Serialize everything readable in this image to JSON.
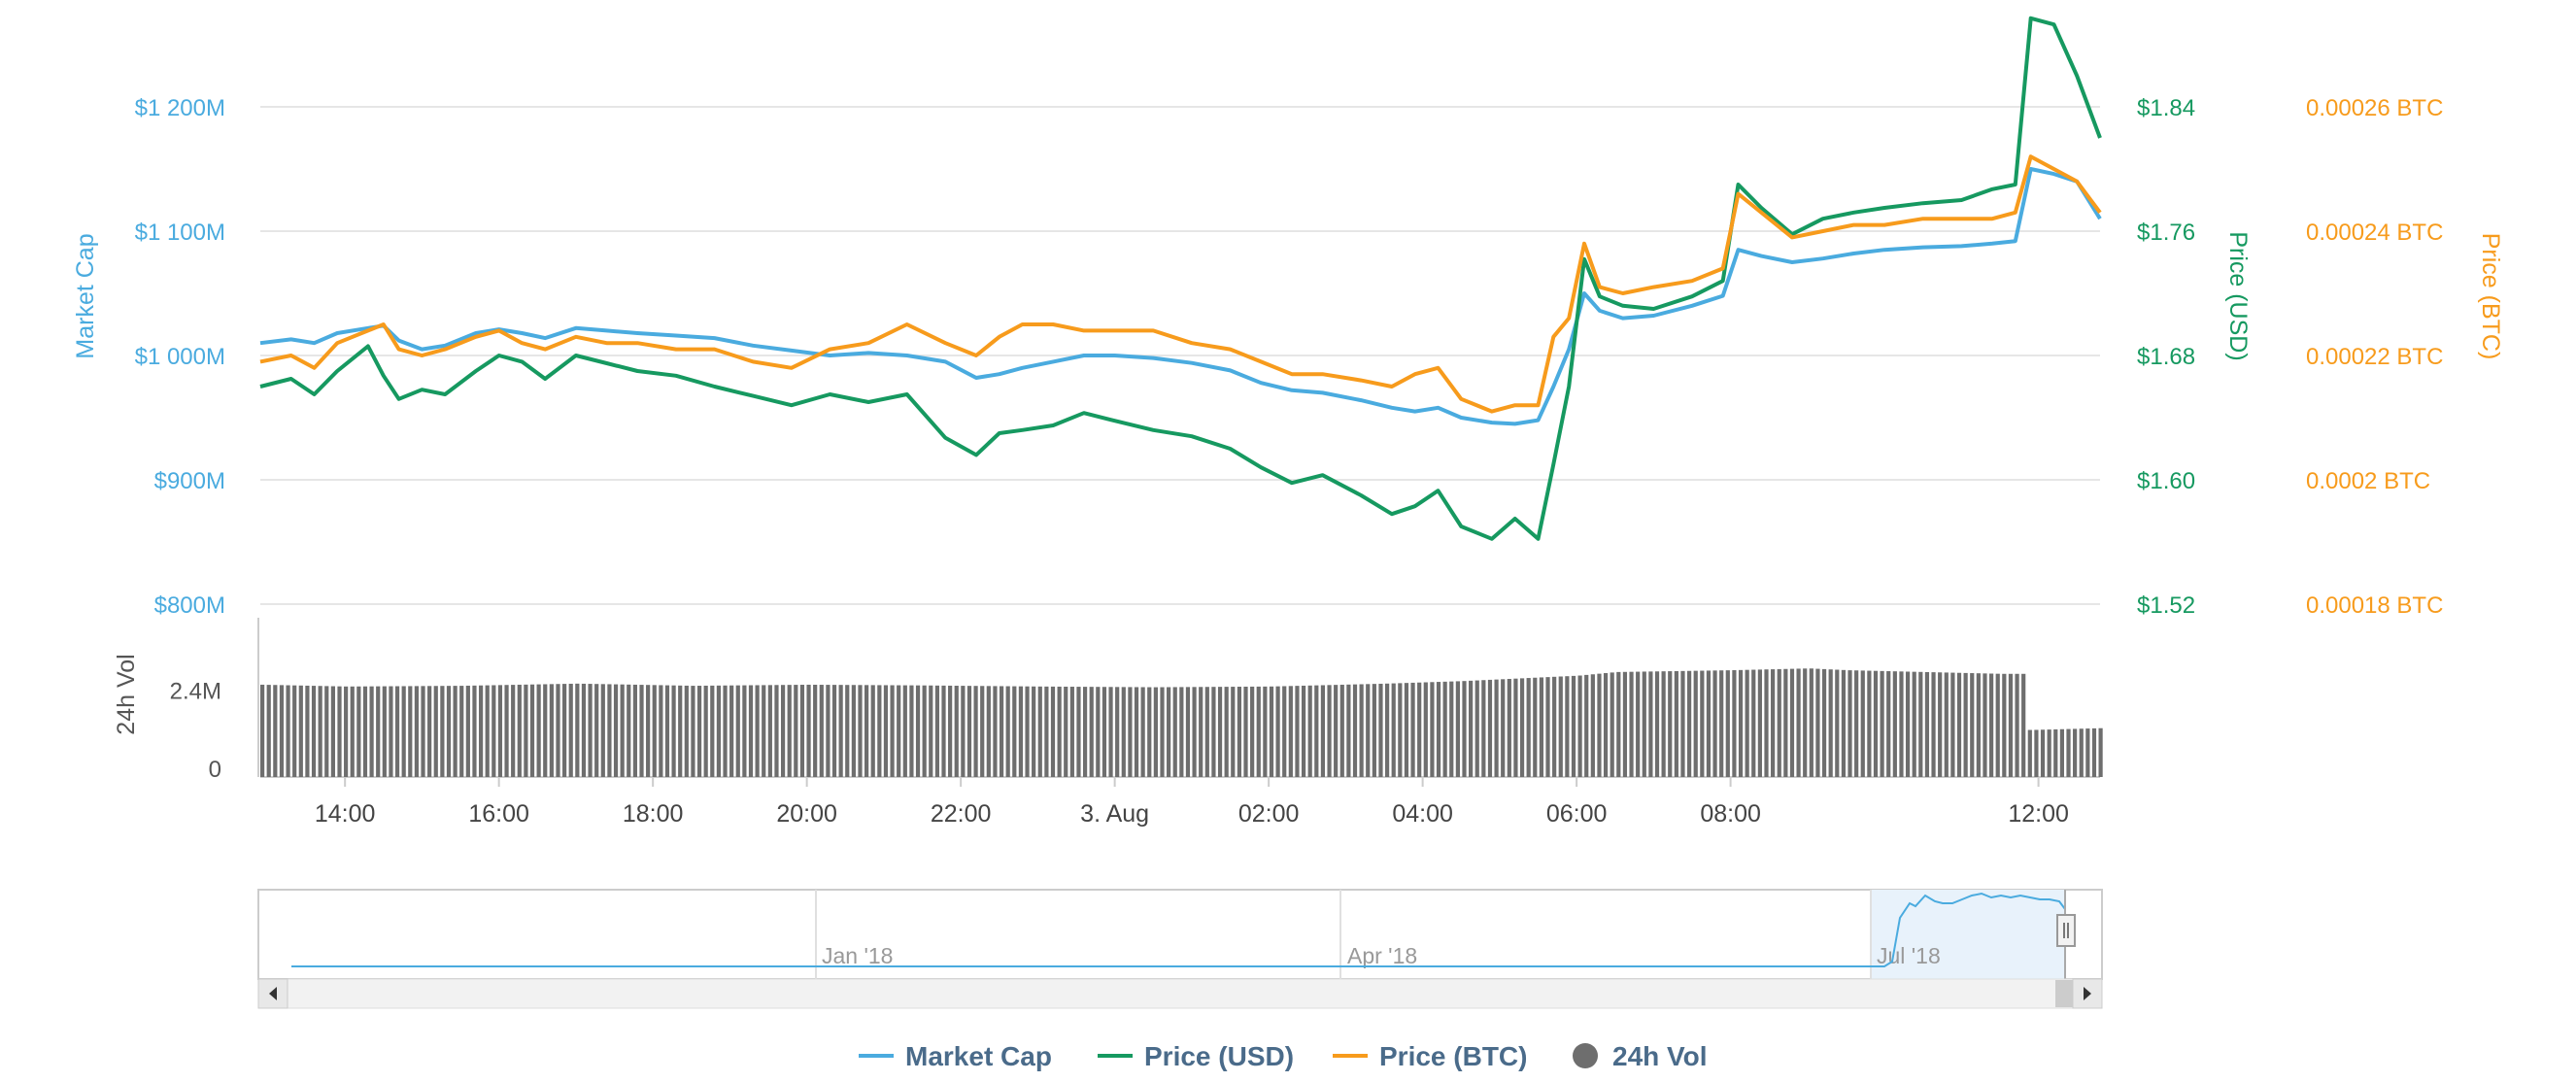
{
  "chart_data": {
    "type": "line",
    "x_axis": {
      "tick_labels": [
        "14:00",
        "16:00",
        "18:00",
        "20:00",
        "22:00",
        "3. Aug",
        "02:00",
        "04:00",
        "06:00",
        "08:00",
        "12:00"
      ],
      "tick_hours": [
        14,
        16,
        18,
        20,
        22,
        24,
        26,
        28,
        30,
        32,
        36
      ],
      "range_hours": [
        12.9,
        36.8
      ]
    },
    "axes": {
      "market_cap": {
        "title": "Market Cap",
        "ticks": [
          "$800M",
          "$900M",
          "$1 000M",
          "$1 100M",
          "$1 200M"
        ],
        "tick_values": [
          800,
          900,
          1000,
          1100,
          1200
        ],
        "range": [
          800,
          1200
        ],
        "color": "#4aabdf"
      },
      "price_usd": {
        "title": "Price (USD)",
        "ticks": [
          "$1.52",
          "$1.60",
          "$1.68",
          "$1.76",
          "$1.84"
        ],
        "tick_values": [
          1.52,
          1.6,
          1.68,
          1.76,
          1.84
        ],
        "range": [
          1.52,
          1.84
        ],
        "color": "#169960"
      },
      "price_btc": {
        "title": "Price (BTC)",
        "ticks": [
          "0.00018 BTC",
          "0.0002 BTC",
          "0.00022 BTC",
          "0.00024 BTC",
          "0.00026 BTC"
        ],
        "tick_values": [
          0.00018,
          0.0002,
          0.00022,
          0.00024,
          0.00026
        ],
        "range": [
          0.00018,
          0.00026
        ],
        "color": "#f79b1c"
      },
      "volume": {
        "title": "24h Vol",
        "ticks": [
          "0",
          "2.4M"
        ],
        "tick_values": [
          0,
          2.4
        ],
        "range": [
          0,
          4.4
        ],
        "color": "#555555"
      }
    },
    "series": [
      {
        "name": "Market Cap",
        "axis": "market_cap",
        "color": "#4aabdf",
        "points": [
          [
            12.9,
            1010
          ],
          [
            13.3,
            1013
          ],
          [
            13.6,
            1010
          ],
          [
            13.9,
            1018
          ],
          [
            14.3,
            1022
          ],
          [
            14.5,
            1024
          ],
          [
            14.7,
            1012
          ],
          [
            15.0,
            1005
          ],
          [
            15.3,
            1008
          ],
          [
            15.7,
            1018
          ],
          [
            16.0,
            1021
          ],
          [
            16.3,
            1018
          ],
          [
            16.6,
            1014
          ],
          [
            17.0,
            1022
          ],
          [
            17.4,
            1020
          ],
          [
            17.8,
            1018
          ],
          [
            18.3,
            1016
          ],
          [
            18.8,
            1014
          ],
          [
            19.3,
            1008
          ],
          [
            19.8,
            1004
          ],
          [
            20.3,
            1000
          ],
          [
            20.8,
            1002
          ],
          [
            21.3,
            1000
          ],
          [
            21.8,
            995
          ],
          [
            22.2,
            982
          ],
          [
            22.5,
            985
          ],
          [
            22.8,
            990
          ],
          [
            23.2,
            995
          ],
          [
            23.6,
            1000
          ],
          [
            24.0,
            1000
          ],
          [
            24.5,
            998
          ],
          [
            25.0,
            994
          ],
          [
            25.5,
            988
          ],
          [
            25.9,
            978
          ],
          [
            26.3,
            972
          ],
          [
            26.7,
            970
          ],
          [
            27.2,
            964
          ],
          [
            27.6,
            958
          ],
          [
            27.9,
            955
          ],
          [
            28.2,
            958
          ],
          [
            28.5,
            950
          ],
          [
            28.9,
            946
          ],
          [
            29.2,
            945
          ],
          [
            29.5,
            948
          ],
          [
            29.7,
            975
          ],
          [
            29.9,
            1005
          ],
          [
            30.1,
            1050
          ],
          [
            30.3,
            1036
          ],
          [
            30.6,
            1030
          ],
          [
            31.0,
            1032
          ],
          [
            31.5,
            1040
          ],
          [
            31.9,
            1048
          ],
          [
            32.1,
            1085
          ],
          [
            32.4,
            1080
          ],
          [
            32.8,
            1075
          ],
          [
            33.2,
            1078
          ],
          [
            33.6,
            1082
          ],
          [
            34.0,
            1085
          ],
          [
            34.5,
            1087
          ],
          [
            35.0,
            1088
          ],
          [
            35.4,
            1090
          ],
          [
            35.7,
            1092
          ],
          [
            35.9,
            1150
          ],
          [
            36.2,
            1146
          ],
          [
            36.5,
            1140
          ],
          [
            36.8,
            1110
          ]
        ]
      },
      {
        "name": "Price (USD)",
        "axis": "price_usd",
        "color": "#169960",
        "points": [
          [
            12.9,
            1.66
          ],
          [
            13.3,
            1.665
          ],
          [
            13.6,
            1.655
          ],
          [
            13.9,
            1.67
          ],
          [
            14.3,
            1.686
          ],
          [
            14.5,
            1.667
          ],
          [
            14.7,
            1.652
          ],
          [
            15.0,
            1.658
          ],
          [
            15.3,
            1.655
          ],
          [
            15.7,
            1.67
          ],
          [
            16.0,
            1.68
          ],
          [
            16.3,
            1.676
          ],
          [
            16.6,
            1.665
          ],
          [
            17.0,
            1.68
          ],
          [
            17.4,
            1.675
          ],
          [
            17.8,
            1.67
          ],
          [
            18.3,
            1.667
          ],
          [
            18.8,
            1.66
          ],
          [
            19.3,
            1.654
          ],
          [
            19.8,
            1.648
          ],
          [
            20.3,
            1.655
          ],
          [
            20.8,
            1.65
          ],
          [
            21.3,
            1.655
          ],
          [
            21.8,
            1.627
          ],
          [
            22.2,
            1.616
          ],
          [
            22.5,
            1.63
          ],
          [
            22.8,
            1.632
          ],
          [
            23.2,
            1.635
          ],
          [
            23.6,
            1.643
          ],
          [
            24.0,
            1.638
          ],
          [
            24.5,
            1.632
          ],
          [
            25.0,
            1.628
          ],
          [
            25.5,
            1.62
          ],
          [
            25.9,
            1.608
          ],
          [
            26.3,
            1.598
          ],
          [
            26.7,
            1.603
          ],
          [
            27.2,
            1.59
          ],
          [
            27.6,
            1.578
          ],
          [
            27.9,
            1.583
          ],
          [
            28.2,
            1.593
          ],
          [
            28.5,
            1.57
          ],
          [
            28.9,
            1.562
          ],
          [
            29.2,
            1.575
          ],
          [
            29.5,
            1.562
          ],
          [
            29.7,
            1.61
          ],
          [
            29.9,
            1.66
          ],
          [
            30.1,
            1.742
          ],
          [
            30.3,
            1.718
          ],
          [
            30.6,
            1.712
          ],
          [
            31.0,
            1.71
          ],
          [
            31.5,
            1.718
          ],
          [
            31.9,
            1.728
          ],
          [
            32.1,
            1.79
          ],
          [
            32.4,
            1.775
          ],
          [
            32.8,
            1.758
          ],
          [
            33.2,
            1.768
          ],
          [
            33.6,
            1.772
          ],
          [
            34.0,
            1.775
          ],
          [
            34.5,
            1.778
          ],
          [
            35.0,
            1.78
          ],
          [
            35.4,
            1.787
          ],
          [
            35.7,
            1.79
          ],
          [
            35.9,
            1.897
          ],
          [
            36.2,
            1.893
          ],
          [
            36.5,
            1.86
          ],
          [
            36.8,
            1.82
          ]
        ]
      },
      {
        "name": "Price (BTC)",
        "axis": "price_btc",
        "color": "#f79b1c",
        "points": [
          [
            12.9,
            0.000219
          ],
          [
            13.3,
            0.00022
          ],
          [
            13.6,
            0.000218
          ],
          [
            13.9,
            0.000222
          ],
          [
            14.3,
            0.000224
          ],
          [
            14.5,
            0.000225
          ],
          [
            14.7,
            0.000221
          ],
          [
            15.0,
            0.00022
          ],
          [
            15.3,
            0.000221
          ],
          [
            15.7,
            0.000223
          ],
          [
            16.0,
            0.000224
          ],
          [
            16.3,
            0.000222
          ],
          [
            16.6,
            0.000221
          ],
          [
            17.0,
            0.000223
          ],
          [
            17.4,
            0.000222
          ],
          [
            17.8,
            0.000222
          ],
          [
            18.3,
            0.000221
          ],
          [
            18.8,
            0.000221
          ],
          [
            19.3,
            0.000219
          ],
          [
            19.8,
            0.000218
          ],
          [
            20.3,
            0.000221
          ],
          [
            20.8,
            0.000222
          ],
          [
            21.3,
            0.000225
          ],
          [
            21.8,
            0.000222
          ],
          [
            22.2,
            0.00022
          ],
          [
            22.5,
            0.000223
          ],
          [
            22.8,
            0.000225
          ],
          [
            23.2,
            0.000225
          ],
          [
            23.6,
            0.000224
          ],
          [
            24.0,
            0.000224
          ],
          [
            24.5,
            0.000224
          ],
          [
            25.0,
            0.000222
          ],
          [
            25.5,
            0.000221
          ],
          [
            25.9,
            0.000219
          ],
          [
            26.3,
            0.000217
          ],
          [
            26.7,
            0.000217
          ],
          [
            27.2,
            0.000216
          ],
          [
            27.6,
            0.000215
          ],
          [
            27.9,
            0.000217
          ],
          [
            28.2,
            0.000218
          ],
          [
            28.5,
            0.000213
          ],
          [
            28.9,
            0.000211
          ],
          [
            29.2,
            0.000212
          ],
          [
            29.5,
            0.000212
          ],
          [
            29.7,
            0.000223
          ],
          [
            29.9,
            0.000226
          ],
          [
            30.1,
            0.000238
          ],
          [
            30.3,
            0.000231
          ],
          [
            30.6,
            0.00023
          ],
          [
            31.0,
            0.000231
          ],
          [
            31.5,
            0.000232
          ],
          [
            31.9,
            0.000234
          ],
          [
            32.1,
            0.000246
          ],
          [
            32.4,
            0.000243
          ],
          [
            32.8,
            0.000239
          ],
          [
            33.2,
            0.00024
          ],
          [
            33.6,
            0.000241
          ],
          [
            34.0,
            0.000241
          ],
          [
            34.5,
            0.000242
          ],
          [
            35.0,
            0.000242
          ],
          [
            35.4,
            0.000242
          ],
          [
            35.7,
            0.000243
          ],
          [
            35.9,
            0.000252
          ],
          [
            36.2,
            0.00025
          ],
          [
            36.5,
            0.000248
          ],
          [
            36.8,
            0.000243
          ]
        ]
      }
    ],
    "volume": {
      "name": "24h Vol",
      "color": "#6e6e6e",
      "points": [
        [
          12.9,
          2.55
        ],
        [
          14.0,
          2.5
        ],
        [
          15.5,
          2.52
        ],
        [
          17.0,
          2.58
        ],
        [
          18.5,
          2.52
        ],
        [
          20.0,
          2.55
        ],
        [
          21.5,
          2.53
        ],
        [
          23.0,
          2.5
        ],
        [
          24.5,
          2.48
        ],
        [
          26.0,
          2.5
        ],
        [
          27.5,
          2.58
        ],
        [
          28.5,
          2.65
        ],
        [
          29.5,
          2.75
        ],
        [
          30.0,
          2.8
        ],
        [
          30.5,
          2.9
        ],
        [
          32.0,
          2.95
        ],
        [
          33.0,
          3.0
        ],
        [
          33.5,
          2.95
        ],
        [
          34.5,
          2.9
        ],
        [
          35.5,
          2.85
        ],
        [
          35.9,
          1.3
        ],
        [
          36.8,
          1.35
        ]
      ]
    },
    "navigator": {
      "tick_labels": [
        "Jan '18",
        "Apr '18",
        "Jul '18"
      ]
    },
    "legend": {
      "position": "bottom-center",
      "items": [
        {
          "label": "Market Cap",
          "color": "#4aabdf",
          "symbol": "line"
        },
        {
          "label": "Price (USD)",
          "color": "#169960",
          "symbol": "line"
        },
        {
          "label": "Price (BTC)",
          "color": "#f79b1c",
          "symbol": "line"
        },
        {
          "label": "24h Vol",
          "color": "#6e6e6e",
          "symbol": "circle"
        }
      ]
    },
    "grid": true
  }
}
